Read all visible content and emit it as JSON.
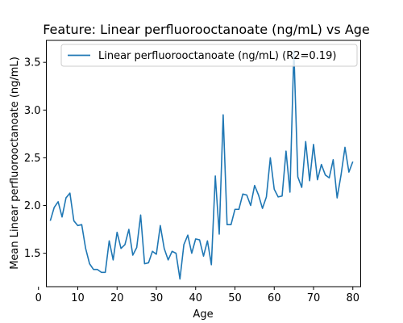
{
  "chart_data": {
    "type": "line",
    "title": "Feature: Linear perfluorooctanoate (ng/mL) vs Age",
    "xlabel": "Age",
    "ylabel": "Mean Linear perfluorooctanoate (ng/mL)",
    "xlim": [
      2,
      82
    ],
    "ylim": [
      1.15,
      3.73
    ],
    "xticks": [
      0,
      10,
      20,
      30,
      40,
      50,
      60,
      70,
      80
    ],
    "yticks": [
      1.5,
      2.0,
      2.5,
      3.0,
      3.5
    ],
    "ytick_labels": [
      "1.5",
      "2.0",
      "2.5",
      "3.0",
      "3.5"
    ],
    "grid": false,
    "legend_position": "top-right",
    "series": [
      {
        "name": "Linear perfluorooctanoate (ng/mL) (R2=0.19)",
        "color": "#1f77b4",
        "x": [
          3,
          4,
          5,
          6,
          7,
          8,
          9,
          10,
          11,
          12,
          13,
          14,
          15,
          16,
          17,
          18,
          19,
          20,
          21,
          22,
          23,
          24,
          25,
          26,
          27,
          28,
          29,
          30,
          31,
          32,
          33,
          34,
          35,
          36,
          37,
          38,
          39,
          40,
          41,
          42,
          43,
          44,
          45,
          46,
          47,
          48,
          49,
          50,
          51,
          52,
          53,
          54,
          55,
          56,
          57,
          58,
          59,
          60,
          61,
          62,
          63,
          64,
          65,
          66,
          67,
          68,
          69,
          70,
          71,
          72,
          73,
          74,
          75,
          76,
          77,
          78,
          79,
          80
        ],
        "values": [
          1.84,
          1.98,
          2.04,
          1.88,
          2.08,
          2.13,
          1.84,
          1.79,
          1.8,
          1.55,
          1.39,
          1.33,
          1.33,
          1.3,
          1.3,
          1.63,
          1.43,
          1.72,
          1.55,
          1.59,
          1.75,
          1.48,
          1.56,
          1.9,
          1.39,
          1.4,
          1.52,
          1.49,
          1.79,
          1.55,
          1.43,
          1.52,
          1.5,
          1.23,
          1.59,
          1.69,
          1.5,
          1.65,
          1.64,
          1.47,
          1.63,
          1.38,
          2.31,
          1.7,
          2.95,
          1.8,
          1.8,
          1.96,
          1.96,
          2.12,
          2.11,
          2.0,
          2.21,
          2.11,
          1.97,
          2.09,
          2.5,
          2.17,
          2.09,
          2.1,
          2.57,
          2.14,
          3.62,
          2.3,
          2.19,
          2.67,
          2.26,
          2.64,
          2.27,
          2.43,
          2.32,
          2.29,
          2.48,
          2.08,
          2.32,
          2.61,
          2.35,
          2.46
        ]
      }
    ]
  }
}
